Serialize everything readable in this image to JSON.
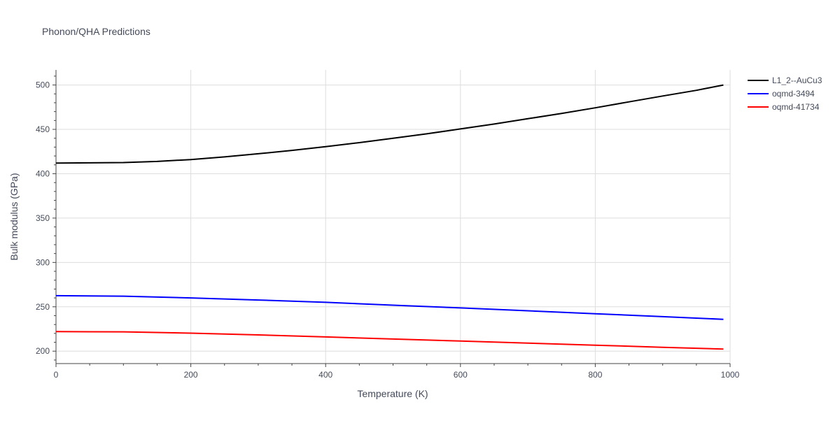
{
  "chart_data": {
    "type": "line",
    "title": "Phonon/QHA Predictions",
    "xlabel": "Temperature (K)",
    "ylabel": "Bulk modulus (GPa)",
    "xlim": [
      0,
      1000
    ],
    "ylim": [
      186,
      517
    ],
    "x_ticks": [
      0,
      200,
      400,
      600,
      800,
      1000
    ],
    "y_ticks": [
      200,
      250,
      300,
      350,
      400,
      450,
      500
    ],
    "grid": true,
    "legend_position": "top-right",
    "series": [
      {
        "name": "L1_2--AuCu3",
        "color": "#000000",
        "x": [
          0,
          50,
          100,
          150,
          200,
          250,
          300,
          350,
          400,
          450,
          500,
          550,
          600,
          650,
          700,
          750,
          800,
          850,
          900,
          950,
          990
        ],
        "y": [
          412,
          412.3,
          412.6,
          413.8,
          416,
          419,
          422.5,
          426.3,
          430.5,
          435,
          440,
          445,
          450.5,
          456,
          462,
          468,
          474.3,
          481,
          487.6,
          494,
          500
        ]
      },
      {
        "name": "oqmd-3494",
        "color": "#0000ff",
        "x": [
          0,
          100,
          200,
          300,
          400,
          500,
          600,
          700,
          800,
          900,
          990
        ],
        "y": [
          262.5,
          262,
          260,
          257.6,
          255,
          251.8,
          248.7,
          245.5,
          242.2,
          238.9,
          235.9
        ]
      },
      {
        "name": "oqmd-41734",
        "color": "#ff0000",
        "x": [
          0,
          100,
          200,
          300,
          400,
          500,
          600,
          700,
          800,
          900,
          990
        ],
        "y": [
          222,
          221.8,
          220.3,
          218.3,
          216,
          213.7,
          211.4,
          209.1,
          206.7,
          204.4,
          202.4
        ]
      }
    ]
  }
}
